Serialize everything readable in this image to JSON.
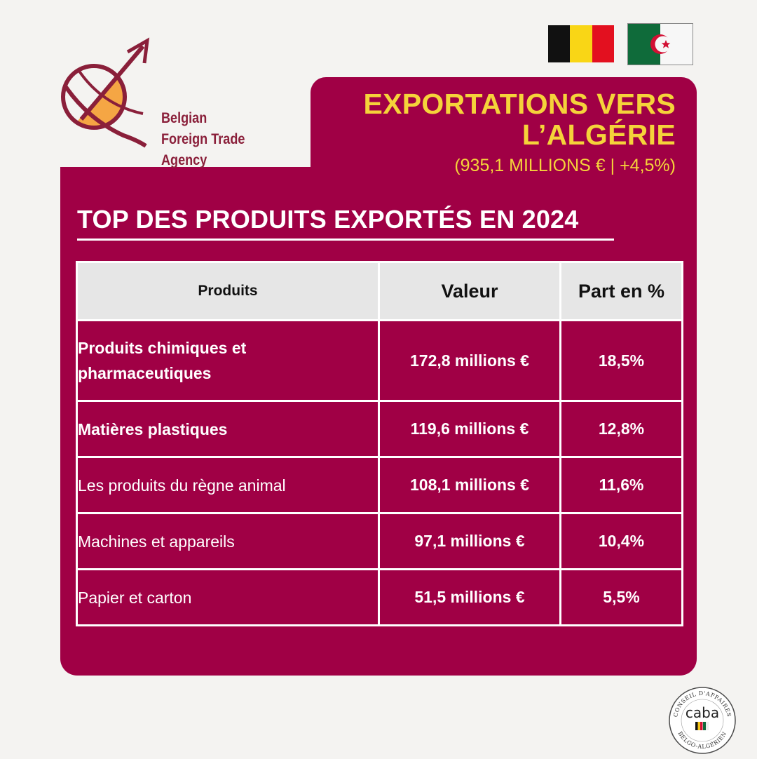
{
  "logo": {
    "line1": "Belgian",
    "line2": "Foreign Trade Agency",
    "colors": {
      "maroon": "#8a1f3a",
      "orange": "#f5a644"
    }
  },
  "flags": [
    "belgium-flag",
    "algeria-flag"
  ],
  "header": {
    "title_line1": "EXPORTATIONS VERS",
    "title_line2": "L’ALGÉRIE",
    "subtitle": "(935,1 MILLIONS € | +4,5%)"
  },
  "section": {
    "heading": "TOP DES PRODUITS EXPORTÉS EN 2024"
  },
  "table": {
    "headers": [
      "Produits",
      "Valeur",
      "Part en %"
    ],
    "rows": [
      {
        "product": "Produits chimiques et pharmaceutiques",
        "value": "172,8 millions €",
        "share": "18,5%"
      },
      {
        "product": "Matières plastiques",
        "value": "119,6 millions €",
        "share": "12,8%"
      },
      {
        "product": "Les produits du règne animal",
        "value": "108,1 millions €",
        "share": "11,6%"
      },
      {
        "product": "Machines et appareils",
        "value": "97,1 millions €",
        "share": "10,4%"
      },
      {
        "product": "Papier et carton",
        "value": "51,5 millions €",
        "share": "5,5%"
      }
    ]
  },
  "badge": {
    "text": "caba",
    "ring_top": "CONSEIL D'AFFAIRES",
    "ring_bottom": "BELGO-ALGÉRIEN"
  },
  "colors": {
    "panel": "#a00045",
    "title": "#f5d33a",
    "background": "#f4f3f1",
    "header_row": "#e6e6e6"
  }
}
